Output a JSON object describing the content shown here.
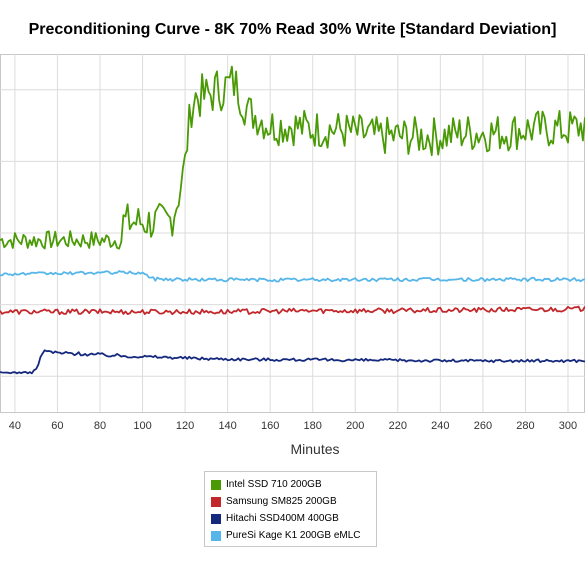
{
  "chart_data": {
    "type": "line",
    "title": "Preconditioning Curve - 8K 70% Read 30% Write [Standard Deviation]",
    "xlabel": "Minutes",
    "ylabel": "",
    "x_ticks": [
      "40",
      "60",
      "80",
      "100",
      "120",
      "140",
      "160",
      "180",
      "200",
      "220",
      "240",
      "260",
      "280",
      "300"
    ],
    "x_tick_values": [
      40,
      60,
      80,
      100,
      120,
      140,
      160,
      180,
      200,
      220,
      240,
      260,
      280,
      300
    ],
    "xlim": [
      33,
      308
    ],
    "ylim": [
      0,
      100
    ],
    "y_tick_values": [
      10,
      30,
      50,
      70,
      90
    ],
    "grid": true,
    "legend_position": "bottom-center",
    "series": [
      {
        "name": "Intel SSD 710 200GB",
        "color": "#4a9a06",
        "points": [
          [
            33,
            48
          ],
          [
            40,
            48
          ],
          [
            50,
            48
          ],
          [
            60,
            48
          ],
          [
            70,
            48
          ],
          [
            80,
            48
          ],
          [
            90,
            48
          ],
          [
            91,
            53
          ],
          [
            100,
            53
          ],
          [
            110,
            53
          ],
          [
            114,
            54
          ],
          [
            117,
            60
          ],
          [
            120,
            70
          ],
          [
            123,
            86
          ],
          [
            125,
            88
          ],
          [
            130,
            88
          ],
          [
            135,
            90
          ],
          [
            140,
            91
          ],
          [
            143,
            92
          ],
          [
            145,
            90
          ],
          [
            148,
            86
          ],
          [
            150,
            84
          ],
          [
            155,
            82
          ],
          [
            160,
            80
          ],
          [
            170,
            80
          ],
          [
            180,
            79
          ],
          [
            190,
            79
          ],
          [
            200,
            78
          ],
          [
            210,
            77
          ],
          [
            220,
            77
          ],
          [
            230,
            77
          ],
          [
            240,
            77
          ],
          [
            250,
            78
          ],
          [
            260,
            78
          ],
          [
            270,
            78
          ],
          [
            280,
            79
          ],
          [
            290,
            79
          ],
          [
            300,
            79
          ],
          [
            308,
            80
          ]
        ],
        "amplitude": [
          2.6,
          2.6,
          2.6,
          2.6,
          2.6,
          2.6,
          2.6,
          5.5,
          5.5,
          5.5,
          5.0,
          4.0,
          4.0,
          6.5,
          6.5,
          6.5,
          6.5,
          6.5,
          6.5,
          6.0,
          6.0,
          5.5,
          5.5,
          5.5,
          5.5,
          5.5,
          5.5,
          5.5,
          5.5,
          5.5,
          5.5,
          5.5,
          5.5,
          5.5,
          5.5,
          5.5,
          5.5,
          5.5,
          5.5
        ]
      },
      {
        "name": "Samsung SM825 200GB",
        "color": "#c2282b",
        "points": [
          [
            33,
            28
          ],
          [
            60,
            28
          ],
          [
            100,
            28
          ],
          [
            140,
            28
          ],
          [
            180,
            28.3
          ],
          [
            220,
            28.3
          ],
          [
            260,
            28.5
          ],
          [
            308,
            28.8
          ]
        ],
        "amplitude": [
          0.7,
          0.7,
          0.7,
          0.7,
          0.7,
          0.7,
          0.7,
          0.7
        ]
      },
      {
        "name": "Hitachi SSD400M 400GB",
        "color": "#14287e",
        "points": [
          [
            33,
            11
          ],
          [
            48,
            11
          ],
          [
            50,
            12
          ],
          [
            53,
            16.5
          ],
          [
            55,
            17
          ],
          [
            60,
            16.5
          ],
          [
            70,
            16.3
          ],
          [
            80,
            16
          ],
          [
            90,
            15.7
          ],
          [
            100,
            15.5
          ],
          [
            110,
            15.3
          ],
          [
            130,
            14.9
          ],
          [
            150,
            14.7
          ],
          [
            200,
            14.5
          ],
          [
            250,
            14.3
          ],
          [
            308,
            14.3
          ]
        ],
        "amplitude": [
          0.2,
          0.2,
          0.4,
          0.6,
          0.6,
          0.5,
          0.5,
          0.5,
          0.5,
          0.4,
          0.4,
          0.4,
          0.4,
          0.4,
          0.4,
          0.4
        ]
      },
      {
        "name": "PureSi Kage K1 200GB eMLC",
        "color": "#56b6ea",
        "points": [
          [
            33,
            38.5
          ],
          [
            60,
            38.7
          ],
          [
            90,
            39
          ],
          [
            100,
            38.8
          ],
          [
            105,
            37.2
          ],
          [
            120,
            37
          ],
          [
            160,
            36.9
          ],
          [
            220,
            37
          ],
          [
            260,
            37
          ],
          [
            308,
            37
          ]
        ],
        "amplitude": [
          0.4,
          0.4,
          0.4,
          0.4,
          0.5,
          0.5,
          0.5,
          0.5,
          0.5,
          0.5
        ]
      }
    ]
  }
}
